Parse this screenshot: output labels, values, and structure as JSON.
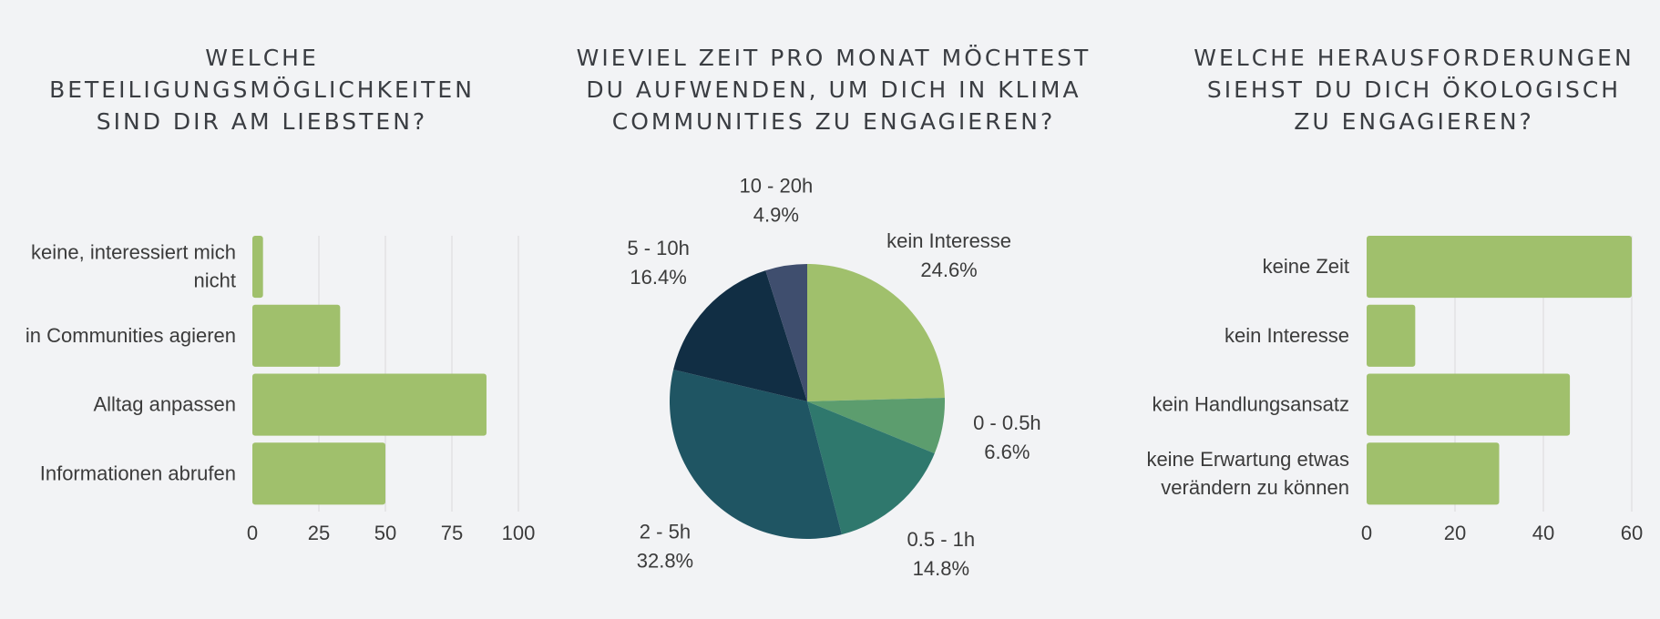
{
  "chart_data": [
    {
      "type": "bar",
      "orientation": "horizontal",
      "title": "WELCHE\nBETEILIGUNGSMÖGLICHKEITEN\nSIND DIR AM LIEBSTEN?",
      "categories": [
        "keine, interessiert mich\nnicht",
        "in Communities agieren",
        "Alltag anpassen",
        "Informationen abrufen"
      ],
      "values": [
        4,
        33,
        88,
        50
      ],
      "xlim": [
        0,
        100
      ],
      "xticks": [
        "0",
        "25",
        "50",
        "75",
        "100"
      ],
      "grid": true,
      "color": "#a0c06c"
    },
    {
      "type": "pie",
      "title": "WIEVIEL ZEIT PRO MONAT MÖCHTEST\nDU AUFWENDEN, UM DICH IN KLIMA\nCOMMUNITIES ZU ENGAGIEREN?",
      "slices": [
        {
          "label": "kein Interesse",
          "value": 24.6,
          "display": "24.6%",
          "color": "#a0c06c"
        },
        {
          "label": "0 - 0.5h",
          "value": 6.6,
          "display": "6.6%",
          "color": "#5c9d6e"
        },
        {
          "label": "0.5 - 1h",
          "value": 14.8,
          "display": "14.8%",
          "color": "#2f786d"
        },
        {
          "label": "2 - 5h",
          "value": 32.8,
          "display": "32.8%",
          "color": "#1f5563"
        },
        {
          "label": "5 - 10h",
          "value": 16.4,
          "display": "16.4%",
          "color": "#112e44"
        },
        {
          "label": "10 - 20h",
          "value": 4.9,
          "display": "4.9%",
          "color": "#3f4e6e"
        }
      ]
    },
    {
      "type": "bar",
      "orientation": "horizontal",
      "title": "WELCHE HERAUSFORDERUNGEN\nSIEHST DU DICH ÖKOLOGISCH\nZU ENGAGIEREN?",
      "categories": [
        "keine Zeit",
        "kein Interesse",
        "kein Handlungsansatz",
        "keine Erwartung etwas\nverändern zu können"
      ],
      "values": [
        60,
        11,
        46,
        30
      ],
      "xlim": [
        0,
        60
      ],
      "xticks": [
        "0",
        "20",
        "40",
        "60"
      ],
      "grid": true,
      "color": "#a0c06c"
    }
  ]
}
